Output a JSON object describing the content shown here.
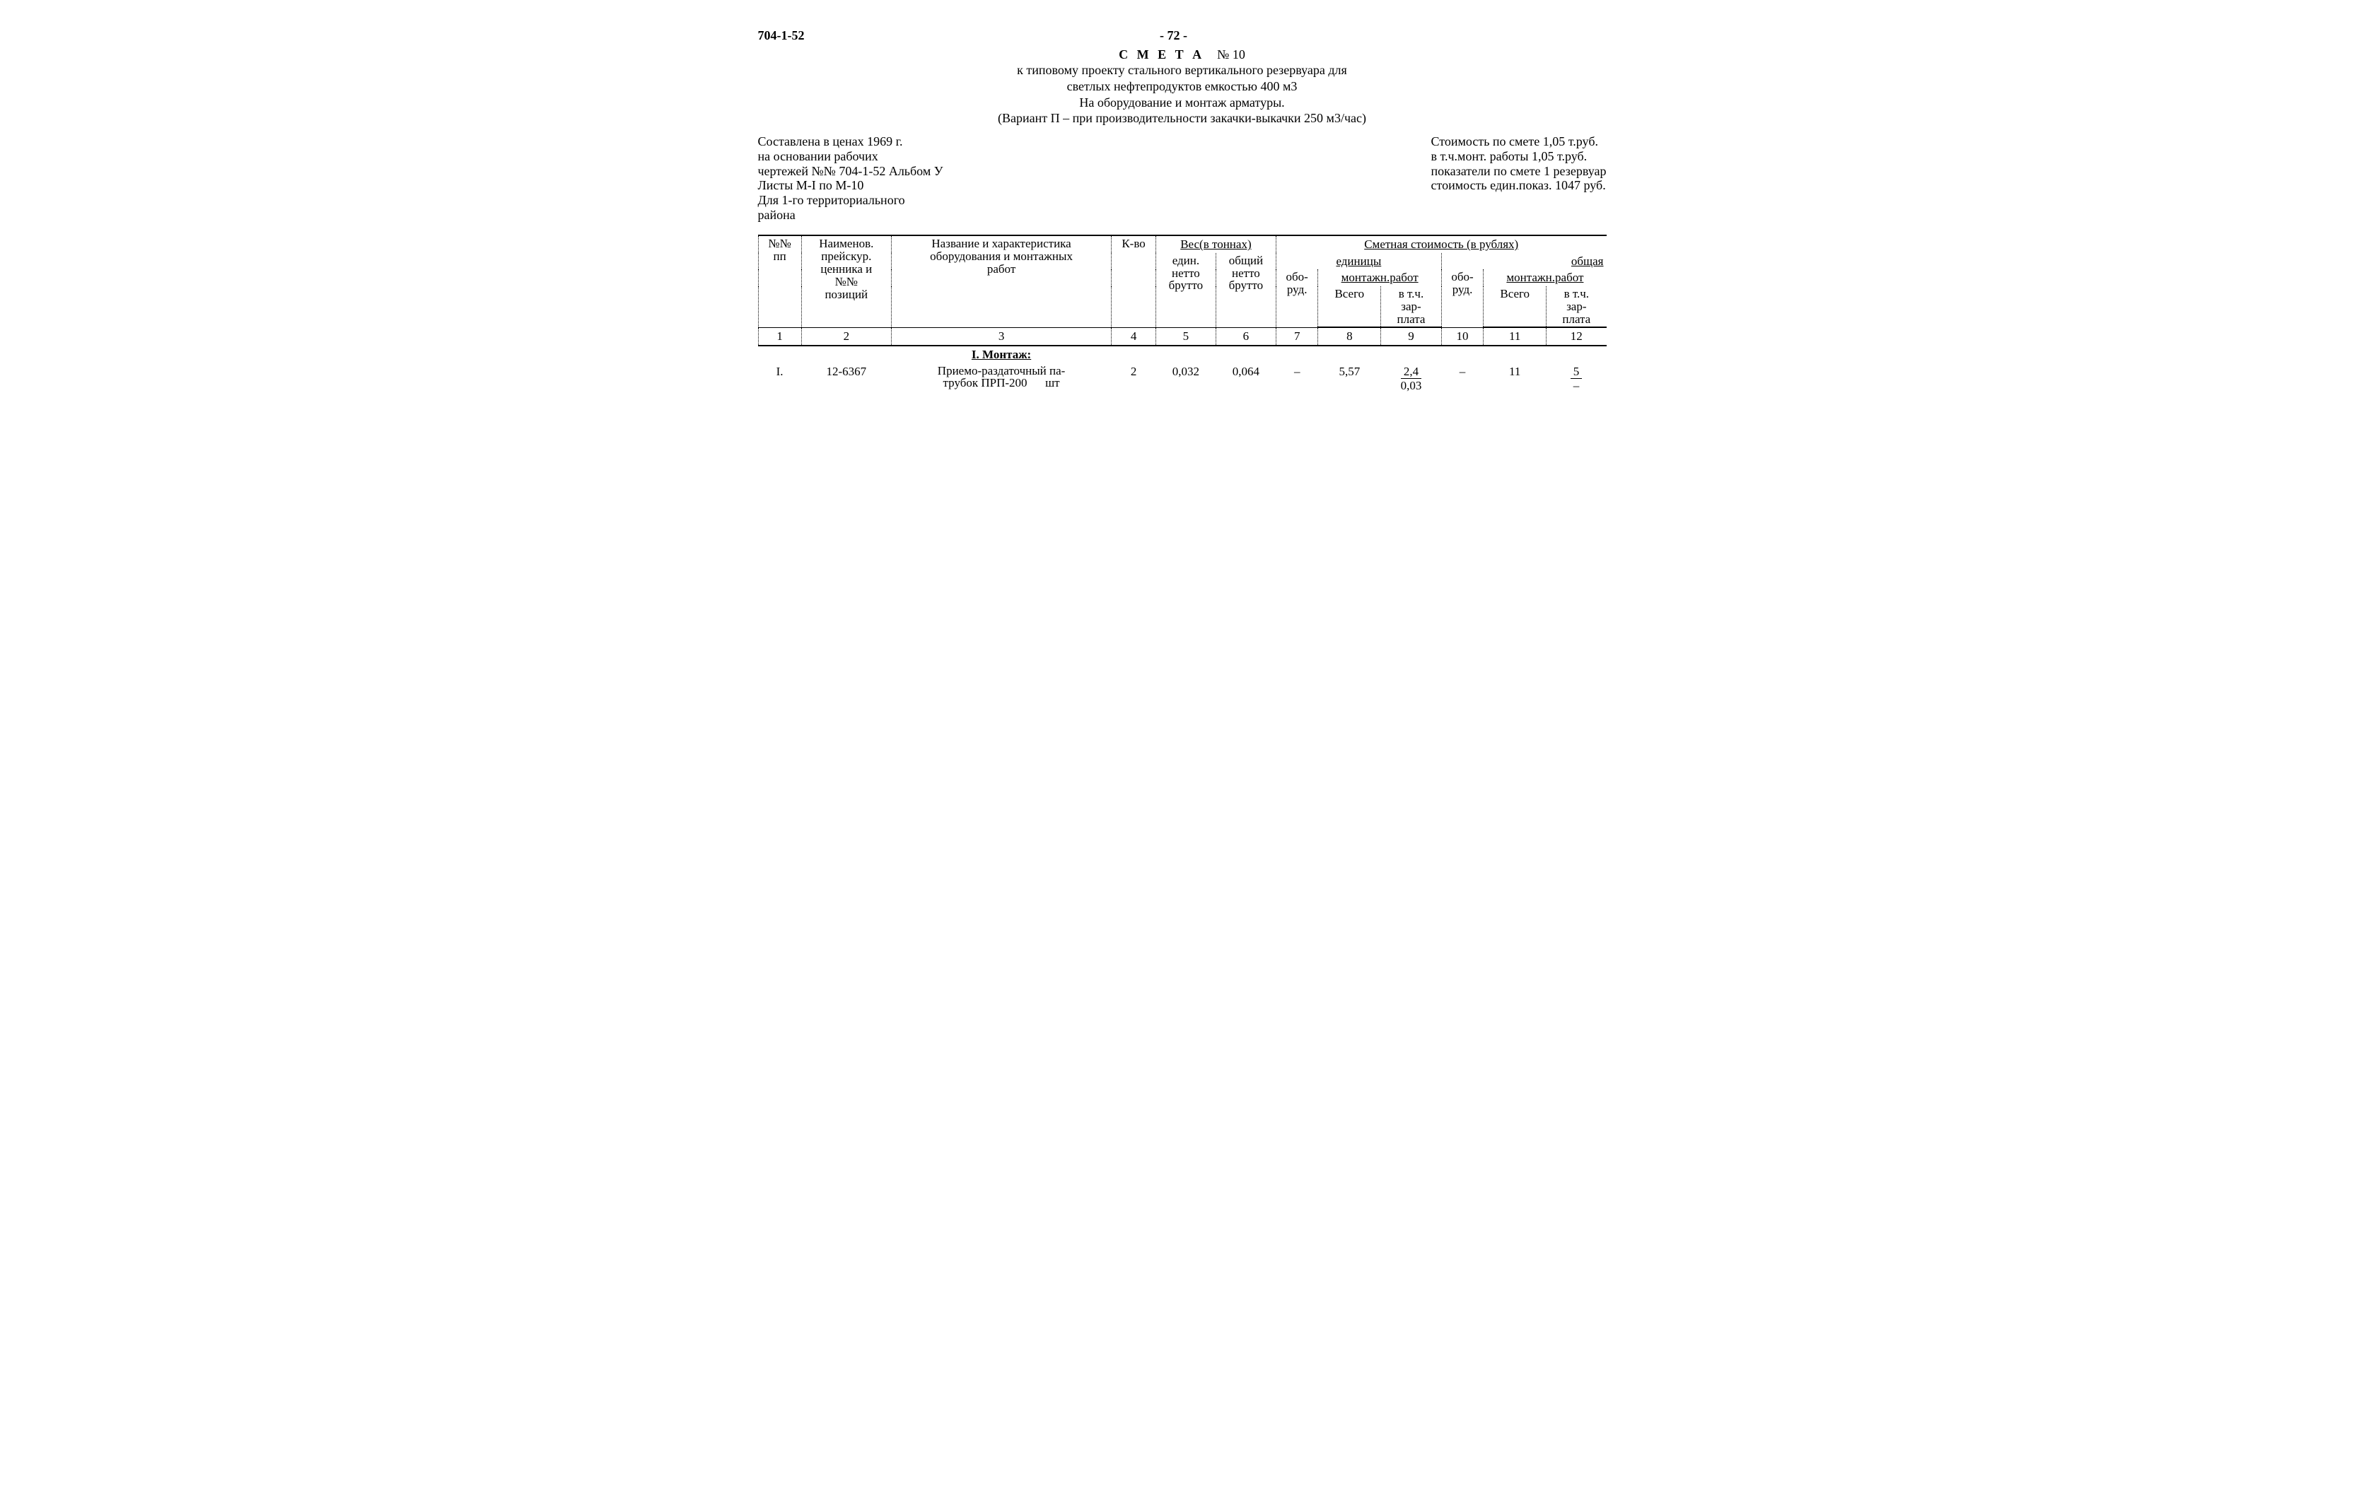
{
  "header": {
    "doc_code": "704-1-52",
    "page_number": "- 72 -",
    "smeta_word": "С М Е Т А",
    "smeta_no": "№ 10",
    "title_line1": "к типовому проекту стального вертикального резервуара для",
    "title_line2": "светлых нефтепродуктов емкостью 400 м3",
    "title_line3": "На оборудование и монтаж арматуры.",
    "title_line4": "(Вариант П – при производительности закачки-выкачки 250 м3/час)"
  },
  "meta": {
    "left": "Составлена в ценах 1969 г.\nна основании рабочих\nчертежей №№ 704-1-52 Альбом У\nЛисты М-I по М-10\nДля 1-го территориального\nрайона",
    "right": "Стоимость по смете 1,05 т.руб.\nв т.ч.монт. работы 1,05 т.руб.\nпоказатели по смете 1 резервуар\nстоимость един.показ. 1047 руб."
  },
  "table": {
    "head": {
      "c1": "№№\nпп",
      "c2": "Наименов.\nпрейскур.\nценника и\n№№\nпозиций",
      "c3": "Название и характеристика\nоборудования и монтажных\nработ",
      "c4": "К-во",
      "weight_group": "Вес(в тоннах)",
      "c5": "един.\nнетто\nбрутто",
      "c6": "общий\nнетто\nбрутто",
      "cost_group": "Сметная стоимость (в рублях)",
      "unit_group": "единицы",
      "total_group": "общая",
      "c7": "обо-\nруд.",
      "mont_group": "монтажн.работ",
      "c8": "Всего",
      "c9": "в т.ч.\nзар-\nплата",
      "c10": "обо-\nруд.",
      "c11": "Всего",
      "c12": "в т.ч.\nзар-\nплата"
    },
    "colnums": [
      "1",
      "2",
      "3",
      "4",
      "5",
      "6",
      "7",
      "8",
      "9",
      "10",
      "11",
      "12"
    ],
    "section1": "I. Монтаж:",
    "rows": [
      {
        "n": "I.",
        "code": "12-6367",
        "name": "Приемо-раздаточный па-\nтрубок ПРП-200",
        "unit": "шт",
        "qty": "2",
        "w_unit": "0,032",
        "w_total": "0,064",
        "c7": "–",
        "c8": "5,57",
        "c9_top": "2,4",
        "c9_bot": "0,03",
        "c10": "–",
        "c11": "11",
        "c12_top": "5",
        "c12_bot": "–"
      }
    ]
  }
}
